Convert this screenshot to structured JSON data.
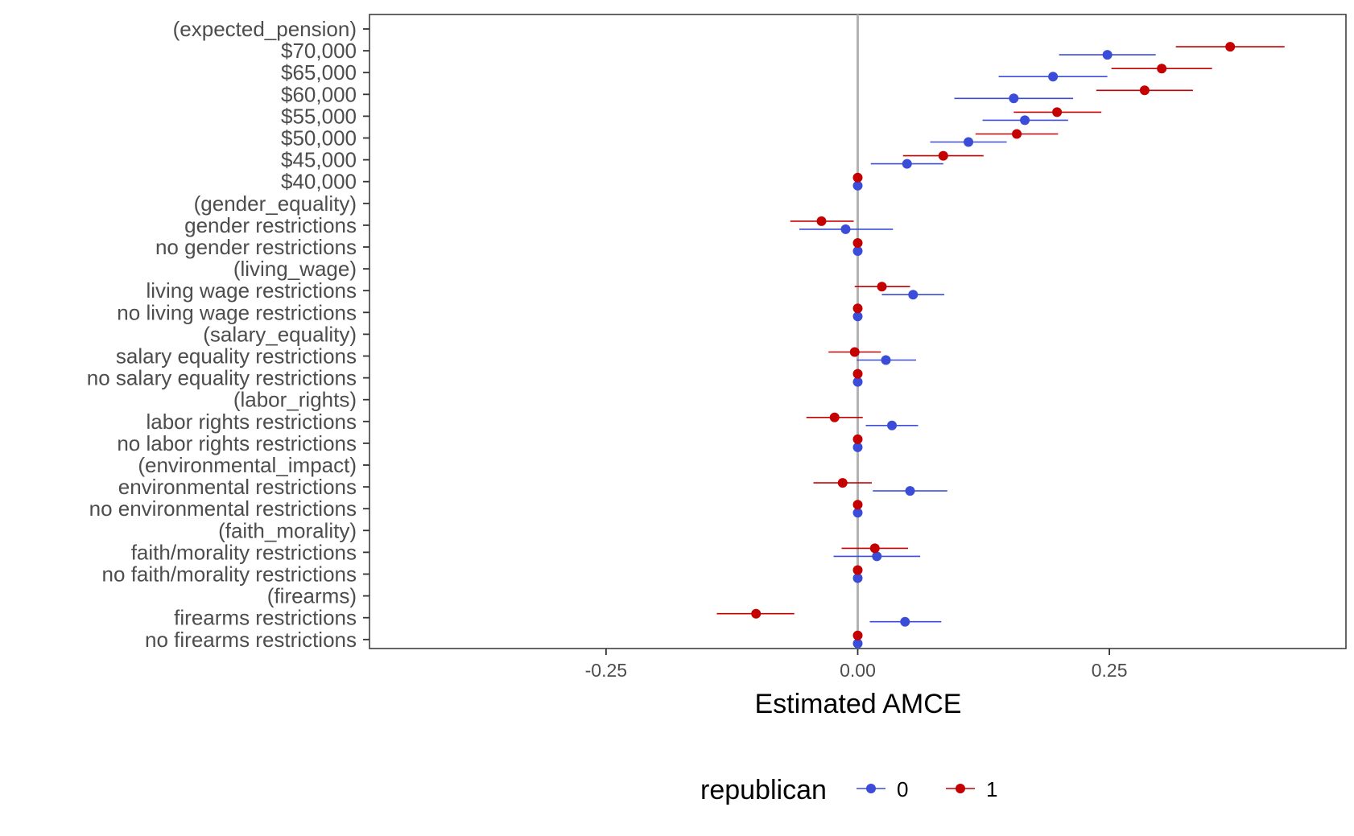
{
  "chart_data": {
    "type": "scatter",
    "xlabel": "Estimated AMCE",
    "ylabel": "",
    "xlim": [
      -0.485,
      0.485
    ],
    "xticks": [
      -0.25,
      0.0,
      0.25
    ],
    "xtick_labels": [
      "-0.25",
      "0.00",
      "0.25"
    ],
    "grid": false,
    "reference_line": 0,
    "categories": [
      "(expected_pension)",
      "$70,000",
      "$65,000",
      "$60,000",
      "$55,000",
      "$50,000",
      "$45,000",
      "$40,000",
      "(gender_equality)",
      "gender restrictions",
      "no gender restrictions",
      "(living_wage)",
      "living wage restrictions",
      "no living wage restrictions",
      "(salary_equality)",
      "salary equality restrictions",
      "no salary equality restrictions",
      "(labor_rights)",
      "labor rights restrictions",
      "no labor rights restrictions",
      "(environmental_impact)",
      "environmental restrictions",
      "no environmental restrictions",
      "(faith_morality)",
      "faith/morality restrictions",
      "no faith/morality restrictions",
      "(firearms)",
      "firearms restrictions",
      "no firearms restrictions"
    ],
    "legend": {
      "title": "republican",
      "position": "bottom"
    },
    "series": [
      {
        "name": "0",
        "color": "#3b4cd8",
        "points": [
          {
            "category": "$70,000",
            "estimate": 0.248,
            "lower": 0.2,
            "upper": 0.296
          },
          {
            "category": "$65,000",
            "estimate": 0.194,
            "lower": 0.14,
            "upper": 0.248
          },
          {
            "category": "$60,000",
            "estimate": 0.155,
            "lower": 0.096,
            "upper": 0.214
          },
          {
            "category": "$55,000",
            "estimate": 0.166,
            "lower": 0.124,
            "upper": 0.209
          },
          {
            "category": "$50,000",
            "estimate": 0.11,
            "lower": 0.072,
            "upper": 0.148
          },
          {
            "category": "$45,000",
            "estimate": 0.049,
            "lower": 0.013,
            "upper": 0.085
          },
          {
            "category": "$40,000",
            "estimate": 0.0,
            "lower": 0.0,
            "upper": 0.0
          },
          {
            "category": "gender restrictions",
            "estimate": -0.012,
            "lower": -0.058,
            "upper": 0.035
          },
          {
            "category": "no gender restrictions",
            "estimate": 0.0,
            "lower": 0.0,
            "upper": 0.0
          },
          {
            "category": "living wage restrictions",
            "estimate": 0.055,
            "lower": 0.024,
            "upper": 0.086
          },
          {
            "category": "no living wage restrictions",
            "estimate": 0.0,
            "lower": 0.0,
            "upper": 0.0
          },
          {
            "category": "salary equality restrictions",
            "estimate": 0.028,
            "lower": -0.001,
            "upper": 0.058
          },
          {
            "category": "no salary equality restrictions",
            "estimate": 0.0,
            "lower": 0.0,
            "upper": 0.0
          },
          {
            "category": "labor rights restrictions",
            "estimate": 0.034,
            "lower": 0.008,
            "upper": 0.06
          },
          {
            "category": "no labor rights restrictions",
            "estimate": 0.0,
            "lower": 0.0,
            "upper": 0.0
          },
          {
            "category": "environmental restrictions",
            "estimate": 0.052,
            "lower": 0.015,
            "upper": 0.089
          },
          {
            "category": "no environmental restrictions",
            "estimate": 0.0,
            "lower": 0.0,
            "upper": 0.0
          },
          {
            "category": "faith/morality restrictions",
            "estimate": 0.019,
            "lower": -0.024,
            "upper": 0.062
          },
          {
            "category": "no faith/morality restrictions",
            "estimate": 0.0,
            "lower": 0.0,
            "upper": 0.0
          },
          {
            "category": "firearms restrictions",
            "estimate": 0.047,
            "lower": 0.012,
            "upper": 0.083
          },
          {
            "category": "no firearms restrictions",
            "estimate": 0.0,
            "lower": 0.0,
            "upper": 0.0
          }
        ]
      },
      {
        "name": "1",
        "color": "#c40000",
        "points": [
          {
            "category": "$70,000",
            "estimate": 0.37,
            "lower": 0.316,
            "upper": 0.424
          },
          {
            "category": "$65,000",
            "estimate": 0.302,
            "lower": 0.252,
            "upper": 0.352
          },
          {
            "category": "$60,000",
            "estimate": 0.285,
            "lower": 0.237,
            "upper": 0.333
          },
          {
            "category": "$55,000",
            "estimate": 0.198,
            "lower": 0.155,
            "upper": 0.242
          },
          {
            "category": "$50,000",
            "estimate": 0.158,
            "lower": 0.117,
            "upper": 0.199
          },
          {
            "category": "$45,000",
            "estimate": 0.085,
            "lower": 0.045,
            "upper": 0.125
          },
          {
            "category": "$40,000",
            "estimate": 0.0,
            "lower": 0.0,
            "upper": 0.0
          },
          {
            "category": "gender restrictions",
            "estimate": -0.036,
            "lower": -0.067,
            "upper": -0.004
          },
          {
            "category": "no gender restrictions",
            "estimate": 0.0,
            "lower": 0.0,
            "upper": 0.0
          },
          {
            "category": "living wage restrictions",
            "estimate": 0.024,
            "lower": -0.003,
            "upper": 0.052
          },
          {
            "category": "no living wage restrictions",
            "estimate": 0.0,
            "lower": 0.0,
            "upper": 0.0
          },
          {
            "category": "salary equality restrictions",
            "estimate": -0.003,
            "lower": -0.029,
            "upper": 0.023
          },
          {
            "category": "no salary equality restrictions",
            "estimate": 0.0,
            "lower": 0.0,
            "upper": 0.0
          },
          {
            "category": "labor rights restrictions",
            "estimate": -0.023,
            "lower": -0.051,
            "upper": 0.005
          },
          {
            "category": "no labor rights restrictions",
            "estimate": 0.0,
            "lower": 0.0,
            "upper": 0.0
          },
          {
            "category": "environmental restrictions",
            "estimate": -0.015,
            "lower": -0.044,
            "upper": 0.014
          },
          {
            "category": "no environmental restrictions",
            "estimate": 0.0,
            "lower": 0.0,
            "upper": 0.0
          },
          {
            "category": "faith/morality restrictions",
            "estimate": 0.017,
            "lower": -0.016,
            "upper": 0.05
          },
          {
            "category": "no faith/morality restrictions",
            "estimate": 0.0,
            "lower": 0.0,
            "upper": 0.0
          },
          {
            "category": "firearms restrictions",
            "estimate": -0.101,
            "lower": -0.14,
            "upper": -0.063
          },
          {
            "category": "no firearms restrictions",
            "estimate": 0.0,
            "lower": 0.0,
            "upper": 0.0
          }
        ]
      }
    ]
  }
}
